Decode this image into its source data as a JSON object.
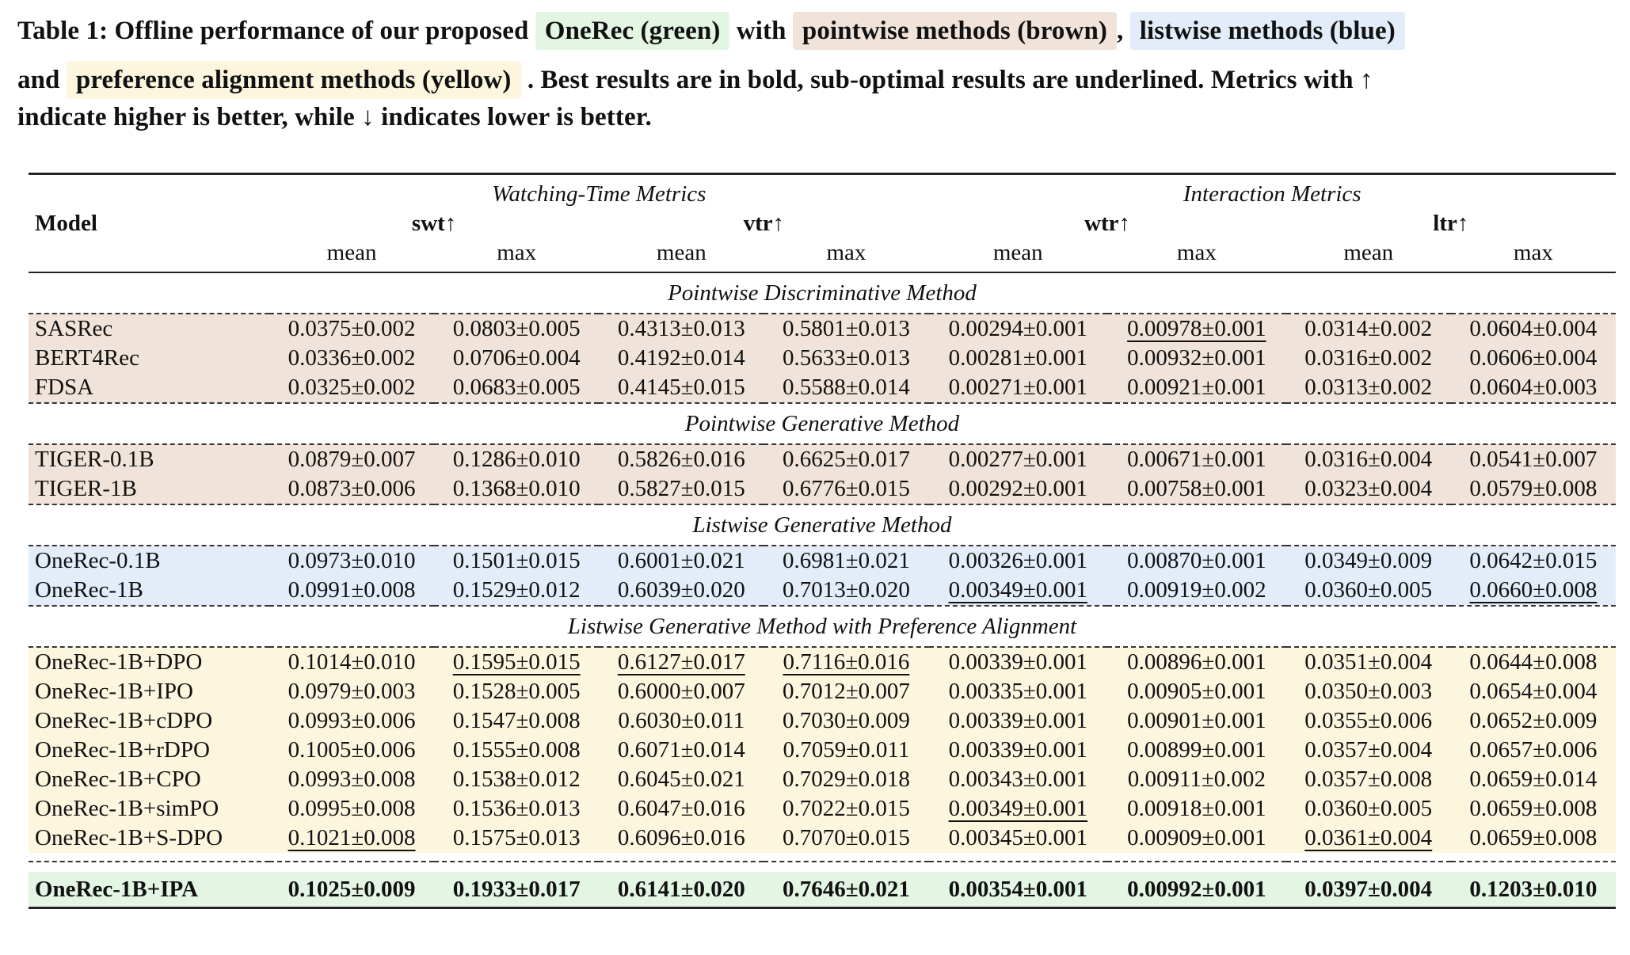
{
  "caption": {
    "prefix": "Table 1: Offline performance of our proposed",
    "onerec_tag": "OneRec (green)",
    "with_word": "with",
    "pointwise_tag": "pointwise methods (brown)",
    "comma": ",",
    "listwise_tag": "listwise methods (blue)",
    "and_word": "and",
    "preference_tag": "preference alignment methods (yellow)",
    "suffix": ". Best results are in bold, sub-optimal results are underlined. Metrics with ↑",
    "line2": "indicate higher is better, while ↓ indicates lower is better."
  },
  "colors": {
    "pointwise": "#f0e4da",
    "listwise": "#e3edf9",
    "preference": "#fdf6df",
    "onerec": "#e3f6e3"
  },
  "table": {
    "model_header": "Model",
    "group_watching": "Watching-Time Metrics",
    "group_interaction": "Interaction Metrics",
    "metrics": [
      "swt↑",
      "vtr↑",
      "wtr↑",
      "ltr↑"
    ],
    "sub": [
      "mean",
      "max",
      "mean",
      "max",
      "mean",
      "max",
      "mean",
      "max"
    ],
    "sections": {
      "s1": "Pointwise Discriminative Method",
      "s2": "Pointwise Generative Method",
      "s3": "Listwise Generative Method",
      "s4": "Listwise Generative Method with Preference Alignment"
    },
    "rows": [
      {
        "model": "SASRec",
        "values": [
          "0.0375±0.002",
          "0.0803±0.005",
          "0.4313±0.013",
          "0.5801±0.013",
          "0.00294±0.001",
          "0.00978±0.001",
          "0.0314±0.002",
          "0.0604±0.004"
        ]
      },
      {
        "model": "BERT4Rec",
        "values": [
          "0.0336±0.002",
          "0.0706±0.004",
          "0.4192±0.014",
          "0.5633±0.013",
          "0.00281±0.001",
          "0.00932±0.001",
          "0.0316±0.002",
          "0.0606±0.004"
        ]
      },
      {
        "model": "FDSA",
        "values": [
          "0.0325±0.002",
          "0.0683±0.005",
          "0.4145±0.015",
          "0.5588±0.014",
          "0.00271±0.001",
          "0.00921±0.001",
          "0.0313±0.002",
          "0.0604±0.003"
        ]
      },
      {
        "model": "TIGER-0.1B",
        "values": [
          "0.0879±0.007",
          "0.1286±0.010",
          "0.5826±0.016",
          "0.6625±0.017",
          "0.00277±0.001",
          "0.00671±0.001",
          "0.0316±0.004",
          "0.0541±0.007"
        ]
      },
      {
        "model": "TIGER-1B",
        "values": [
          "0.0873±0.006",
          "0.1368±0.010",
          "0.5827±0.015",
          "0.6776±0.015",
          "0.00292±0.001",
          "0.00758±0.001",
          "0.0323±0.004",
          "0.0579±0.008"
        ]
      },
      {
        "model": "OneRec-0.1B",
        "values": [
          "0.0973±0.010",
          "0.1501±0.015",
          "0.6001±0.021",
          "0.6981±0.021",
          "0.00326±0.001",
          "0.00870±0.001",
          "0.0349±0.009",
          "0.0642±0.015"
        ]
      },
      {
        "model": "OneRec-1B",
        "values": [
          "0.0991±0.008",
          "0.1529±0.012",
          "0.6039±0.020",
          "0.7013±0.020",
          "0.00349±0.001",
          "0.00919±0.002",
          "0.0360±0.005",
          "0.0660±0.008"
        ]
      },
      {
        "model": "OneRec-1B+DPO",
        "values": [
          "0.1014±0.010",
          "0.1595±0.015",
          "0.6127±0.017",
          "0.7116±0.016",
          "0.00339±0.001",
          "0.00896±0.001",
          "0.0351±0.004",
          "0.0644±0.008"
        ]
      },
      {
        "model": "OneRec-1B+IPO",
        "values": [
          "0.0979±0.003",
          "0.1528±0.005",
          "0.6000±0.007",
          "0.7012±0.007",
          "0.00335±0.001",
          "0.00905±0.001",
          "0.0350±0.003",
          "0.0654±0.004"
        ]
      },
      {
        "model": "OneRec-1B+cDPO",
        "values": [
          "0.0993±0.006",
          "0.1547±0.008",
          "0.6030±0.011",
          "0.7030±0.009",
          "0.00339±0.001",
          "0.00901±0.001",
          "0.0355±0.006",
          "0.0652±0.009"
        ]
      },
      {
        "model": "OneRec-1B+rDPO",
        "values": [
          "0.1005±0.006",
          "0.1555±0.008",
          "0.6071±0.014",
          "0.7059±0.011",
          "0.00339±0.001",
          "0.00899±0.001",
          "0.0357±0.004",
          "0.0657±0.006"
        ]
      },
      {
        "model": "OneRec-1B+CPO",
        "values": [
          "0.0993±0.008",
          "0.1538±0.012",
          "0.6045±0.021",
          "0.7029±0.018",
          "0.00343±0.001",
          "0.00911±0.002",
          "0.0357±0.008",
          "0.0659±0.014"
        ]
      },
      {
        "model": "OneRec-1B+simPO",
        "values": [
          "0.0995±0.008",
          "0.1536±0.013",
          "0.6047±0.016",
          "0.7022±0.015",
          "0.00349±0.001",
          "0.00918±0.001",
          "0.0360±0.005",
          "0.0659±0.008"
        ]
      },
      {
        "model": "OneRec-1B+S-DPO",
        "values": [
          "0.1021±0.008",
          "0.1575±0.013",
          "0.6096±0.016",
          "0.7070±0.015",
          "0.00345±0.001",
          "0.00909±0.001",
          "0.0361±0.004",
          "0.0659±0.008"
        ]
      },
      {
        "model": "OneRec-1B+IPA",
        "values": [
          "0.1025±0.009",
          "0.1933±0.017",
          "0.6141±0.020",
          "0.7646±0.021",
          "0.00354±0.001",
          "0.00992±0.001",
          "0.0397±0.004",
          "0.1203±0.010"
        ]
      }
    ]
  }
}
